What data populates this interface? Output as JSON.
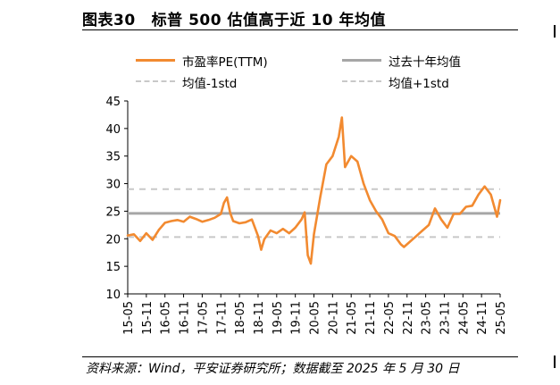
{
  "figure": {
    "number": "图表30",
    "title": "标普 500 估值高于近 10 年均值",
    "source": "资料来源：Wind，平安证券研究所；数据截至 2025 年 5 月 30 日"
  },
  "colors": {
    "pe_line": "#F28A30",
    "mean_line": "#A6A6A6",
    "band_line": "#C8C8C8",
    "axis": "#000000"
  },
  "chart_data": {
    "type": "line",
    "title": "",
    "xlabel": "",
    "ylabel": "",
    "ylim": [
      10,
      45
    ],
    "yticks": [
      10,
      15,
      20,
      25,
      30,
      35,
      40,
      45
    ],
    "xticks": [
      "15-05",
      "15-11",
      "16-05",
      "16-11",
      "17-05",
      "17-11",
      "18-05",
      "18-11",
      "19-05",
      "19-11",
      "20-05",
      "20-11",
      "21-05",
      "21-11",
      "22-05",
      "22-11",
      "23-05",
      "23-11",
      "24-05",
      "24-11",
      "25-05"
    ],
    "grid": false,
    "legend_position": "top",
    "series": [
      {
        "name": "市盈率PE(TTM)",
        "style": "solid",
        "x": [
          "15-05",
          "15-07",
          "15-09",
          "15-11",
          "16-01",
          "16-03",
          "16-05",
          "16-07",
          "16-09",
          "16-11",
          "17-01",
          "17-03",
          "17-05",
          "17-07",
          "17-09",
          "17-11",
          "17-12",
          "18-01",
          "18-02",
          "18-03",
          "18-05",
          "18-07",
          "18-09",
          "18-11",
          "18-12",
          "19-01",
          "19-03",
          "19-05",
          "19-07",
          "19-09",
          "19-11",
          "20-01",
          "20-02",
          "20-03",
          "20-04",
          "20-05",
          "20-07",
          "20-09",
          "20-11",
          "21-01",
          "21-02",
          "21-03",
          "21-05",
          "21-07",
          "21-09",
          "21-11",
          "22-01",
          "22-03",
          "22-05",
          "22-07",
          "22-09",
          "22-10",
          "22-12",
          "23-02",
          "23-04",
          "23-06",
          "23-08",
          "23-10",
          "23-12",
          "24-02",
          "24-04",
          "24-06",
          "24-08",
          "24-10",
          "24-12",
          "25-02",
          "25-04",
          "25-05"
        ],
        "values": [
          20.6,
          20.8,
          19.6,
          21.0,
          19.8,
          21.6,
          22.9,
          23.2,
          23.4,
          23.1,
          24.0,
          23.6,
          23.1,
          23.4,
          23.8,
          24.5,
          26.5,
          27.5,
          24.7,
          23.2,
          22.8,
          23.0,
          23.5,
          20.5,
          18.0,
          19.9,
          21.5,
          21.0,
          21.8,
          21.0,
          22.0,
          23.5,
          24.8,
          17.0,
          15.5,
          20.8,
          27.5,
          33.5,
          35.0,
          38.5,
          42.0,
          33.0,
          35.0,
          34.0,
          30.0,
          27.0,
          25.0,
          23.5,
          21.0,
          20.5,
          19.0,
          18.5,
          19.5,
          20.5,
          21.5,
          22.5,
          25.5,
          23.5,
          22.0,
          24.5,
          24.5,
          25.8,
          26.0,
          28.0,
          29.5,
          28.0,
          24.0,
          27.0
        ]
      },
      {
        "name": "过去十年均值",
        "style": "solid",
        "x": [
          "15-05",
          "25-05"
        ],
        "values": [
          24.6,
          24.6
        ]
      },
      {
        "name": "均值-1std",
        "style": "dashed",
        "x": [
          "15-05",
          "25-05"
        ],
        "values": [
          20.3,
          20.3
        ]
      },
      {
        "name": "均值+1std",
        "style": "dashed",
        "x": [
          "15-05",
          "25-05"
        ],
        "values": [
          29.0,
          29.0
        ]
      }
    ]
  }
}
